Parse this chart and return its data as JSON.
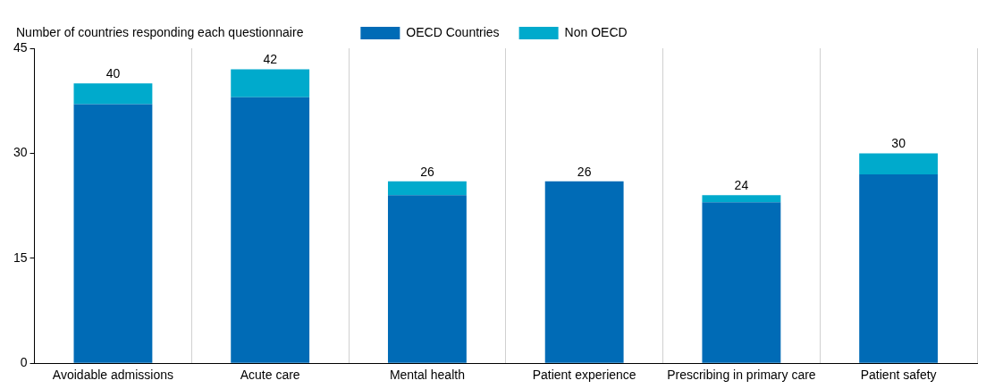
{
  "chart_data": {
    "type": "bar",
    "stacked": true,
    "ylabel": "Number of countries responding each questionnaire",
    "categories": [
      "Avoidable admissions",
      "Acute care",
      "Mental health",
      "Patient experience",
      "Prescribing in primary care",
      "Patient safety"
    ],
    "series": [
      {
        "name": "OECD Countries",
        "color": "#006bb6",
        "values": [
          37,
          38,
          24,
          26,
          23,
          27
        ]
      },
      {
        "name": "Non OECD",
        "color": "#00aacc",
        "values": [
          3,
          4,
          2,
          0,
          1,
          3
        ]
      }
    ],
    "totals": [
      "40",
      "42",
      "26",
      "26",
      "24",
      "30"
    ],
    "ylim": [
      0,
      45
    ],
    "yticks": [
      0,
      15,
      30,
      45
    ],
    "grid": "x",
    "legend": "top"
  }
}
